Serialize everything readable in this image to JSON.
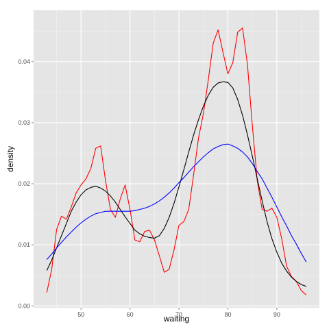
{
  "chart_data": {
    "type": "line",
    "title": "",
    "xlabel": "waiting",
    "ylabel": "density",
    "xlim": [
      40.3,
      98.7
    ],
    "ylim": [
      -0.0003,
      0.0484
    ],
    "grid": true,
    "legend": "none",
    "x_ticks": [
      50,
      60,
      70,
      80,
      90
    ],
    "y_ticks": [
      0.0,
      0.01,
      0.02,
      0.03,
      0.04
    ],
    "x_tick_labels": [
      "50",
      "60",
      "70",
      "80",
      "90"
    ],
    "y_tick_labels": [
      "0.00",
      "0.01",
      "0.02",
      "0.03",
      "0.04"
    ],
    "colors": {
      "panel": "#e5e5e5",
      "grid_major": "#ffffff",
      "grid_minor": "#f2f2f2",
      "tick": "#7f7f7f"
    },
    "series": [
      {
        "color": "#ff0000",
        "x": [
          43,
          44,
          45,
          46,
          47,
          48,
          49,
          50,
          51,
          52,
          53,
          54,
          55,
          56,
          57,
          58,
          59,
          60,
          61,
          62,
          63,
          64,
          65,
          66,
          67,
          68,
          69,
          70,
          71,
          72,
          73,
          74,
          75,
          76,
          77,
          78,
          79,
          80,
          81,
          82,
          83,
          84,
          85,
          86,
          87,
          88,
          89,
          90,
          91,
          92,
          93,
          94,
          95,
          96
        ],
        "y": [
          0.0022,
          0.006,
          0.0125,
          0.0147,
          0.0142,
          0.0162,
          0.0185,
          0.0198,
          0.0208,
          0.0225,
          0.0258,
          0.0262,
          0.0205,
          0.0158,
          0.0145,
          0.0175,
          0.0198,
          0.0158,
          0.0108,
          0.0105,
          0.0122,
          0.0124,
          0.0108,
          0.0082,
          0.0055,
          0.006,
          0.0092,
          0.0132,
          0.0138,
          0.0158,
          0.0215,
          0.0275,
          0.0315,
          0.037,
          0.043,
          0.0452,
          0.0415,
          0.038,
          0.0398,
          0.0448,
          0.0455,
          0.0395,
          0.0295,
          0.0205,
          0.0158,
          0.0155,
          0.016,
          0.0145,
          0.011,
          0.0065,
          0.0048,
          0.004,
          0.0025,
          0.0018
        ]
      },
      {
        "color": "#000000",
        "x": [
          43,
          44,
          45,
          46,
          47,
          48,
          49,
          50,
          51,
          52,
          53,
          54,
          55,
          56,
          57,
          58,
          59,
          60,
          61,
          62,
          63,
          64,
          65,
          66,
          67,
          68,
          69,
          70,
          71,
          72,
          73,
          74,
          75,
          76,
          77,
          78,
          79,
          80,
          81,
          82,
          83,
          84,
          85,
          86,
          87,
          88,
          89,
          90,
          91,
          92,
          93,
          94,
          95,
          96
        ],
        "y": [
          0.0058,
          0.0075,
          0.0095,
          0.0115,
          0.0135,
          0.0155,
          0.017,
          0.0182,
          0.019,
          0.0194,
          0.0196,
          0.0193,
          0.0188,
          0.018,
          0.017,
          0.0158,
          0.0146,
          0.0135,
          0.0124,
          0.0118,
          0.0114,
          0.0112,
          0.0111,
          0.0115,
          0.0127,
          0.0145,
          0.0168,
          0.0195,
          0.0223,
          0.0252,
          0.028,
          0.0305,
          0.0327,
          0.0345,
          0.0358,
          0.0365,
          0.0367,
          0.0366,
          0.0357,
          0.0338,
          0.0312,
          0.028,
          0.0245,
          0.0208,
          0.0172,
          0.0138,
          0.011,
          0.0088,
          0.007,
          0.0057,
          0.0047,
          0.004,
          0.0035,
          0.0032
        ]
      },
      {
        "color": "#0000ff",
        "x": [
          43,
          44,
          45,
          46,
          47,
          48,
          49,
          50,
          51,
          52,
          53,
          54,
          55,
          56,
          57,
          58,
          59,
          60,
          61,
          62,
          63,
          64,
          65,
          66,
          67,
          68,
          69,
          70,
          71,
          72,
          73,
          74,
          75,
          76,
          77,
          78,
          79,
          80,
          81,
          82,
          83,
          84,
          85,
          86,
          87,
          88,
          89,
          90,
          91,
          92,
          93,
          94,
          95,
          96
        ],
        "y": [
          0.0076,
          0.0085,
          0.0095,
          0.0104,
          0.0113,
          0.0121,
          0.0129,
          0.0136,
          0.0142,
          0.0147,
          0.0151,
          0.0153,
          0.0155,
          0.0155,
          0.0155,
          0.0155,
          0.0155,
          0.0155,
          0.0156,
          0.0158,
          0.016,
          0.0163,
          0.0167,
          0.0172,
          0.0178,
          0.0185,
          0.0193,
          0.0202,
          0.021,
          0.0219,
          0.0228,
          0.0236,
          0.0244,
          0.0251,
          0.0257,
          0.0261,
          0.0264,
          0.0265,
          0.0262,
          0.0258,
          0.0252,
          0.0244,
          0.0233,
          0.022,
          0.0208,
          0.0193,
          0.0178,
          0.0162,
          0.0146,
          0.0131,
          0.0115,
          0.0101,
          0.0086,
          0.0072
        ]
      }
    ]
  }
}
